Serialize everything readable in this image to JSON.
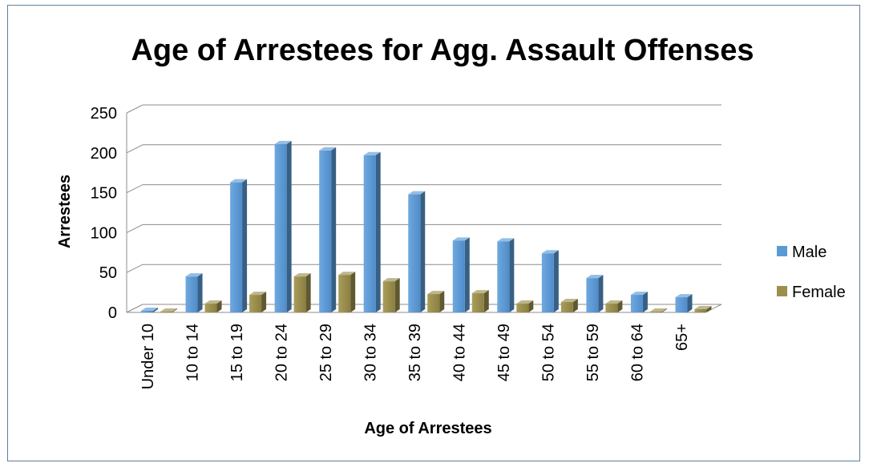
{
  "chart_data": {
    "type": "bar",
    "title": "Age of Arrestees for Agg. Assault Offenses",
    "xlabel": "Age of Arrestees",
    "ylabel": "Arrestees",
    "categories": [
      "Under 10",
      "10 to 14",
      "15 to 19",
      "20 to 24",
      "25 to 29",
      "30 to 34",
      "35 to 39",
      "40 to 44",
      "45 to 49",
      "50 to 54",
      "55 to 59",
      "60 to 64",
      "65+"
    ],
    "series": [
      {
        "name": "Male",
        "color": "#5b9bd5",
        "values": [
          2,
          45,
          163,
          211,
          203,
          197,
          148,
          90,
          89,
          74,
          43,
          22,
          19
        ]
      },
      {
        "name": "Female",
        "color": "#9b8f4e",
        "values": [
          1,
          11,
          22,
          45,
          47,
          39,
          23,
          24,
          11,
          13,
          11,
          1,
          4
        ]
      }
    ],
    "yticks": [
      "0",
      "50",
      "100",
      "150",
      "200",
      "250"
    ],
    "ylim": [
      0,
      250
    ],
    "grid": true,
    "style": "3d-column",
    "legend_position": "right"
  }
}
